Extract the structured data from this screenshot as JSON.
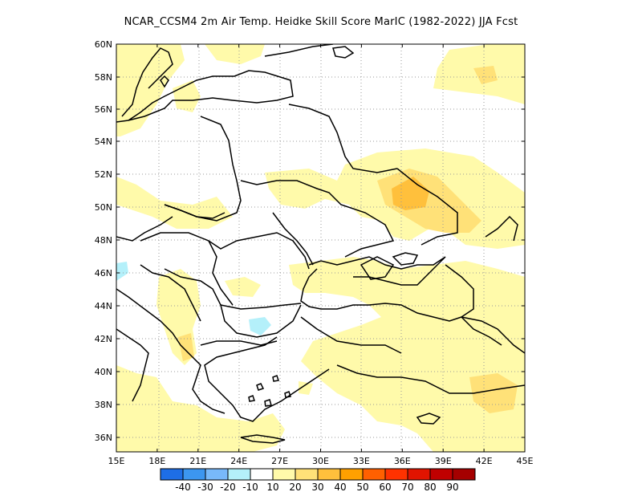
{
  "title": "NCAR_CCSM4  2m Air Temp. Heidke Skill Score MarIC (1982-2022) JJA Fcst",
  "lat_labels": [
    "60N",
    "58N",
    "56N",
    "54N",
    "52N",
    "50N",
    "48N",
    "46N",
    "44N",
    "42N",
    "40N",
    "38N",
    "36N"
  ],
  "lon_labels": [
    "15E",
    "18E",
    "21E",
    "24E",
    "27E",
    "30E",
    "33E",
    "36E",
    "39E",
    "42E",
    "45E"
  ],
  "colorbar": {
    "colors": [
      "#1e6ee6",
      "#3c96f0",
      "#78b9fa",
      "#b4f0fa",
      "#ffffff",
      "#fffaaa",
      "#ffe178",
      "#ffc03c",
      "#ffa000",
      "#ff6000",
      "#ff3200",
      "#e11400",
      "#c00000",
      "#a50000"
    ],
    "labels": [
      "-40",
      "-30",
      "-20",
      "-10",
      "10",
      "20",
      "30",
      "40",
      "50",
      "60",
      "70",
      "80",
      "90"
    ]
  },
  "grid": "dotted"
}
